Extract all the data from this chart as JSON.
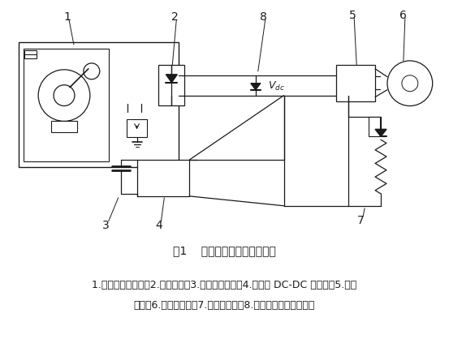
{
  "title": "图1    起重机混合动力系统简图",
  "caption_line1": "1.是柴油发电机组，2.是整流器，3.是超级电容组，4.是双向 DC-DC 变换器，5.是逆",
  "caption_line2": "变器，6.是工作电机，7.是能耗电阻，8.是起稳压作用的电容。",
  "bg_color": "#ffffff",
  "line_color": "#1a1a1a",
  "font_size_title": 10,
  "font_size_caption": 9
}
